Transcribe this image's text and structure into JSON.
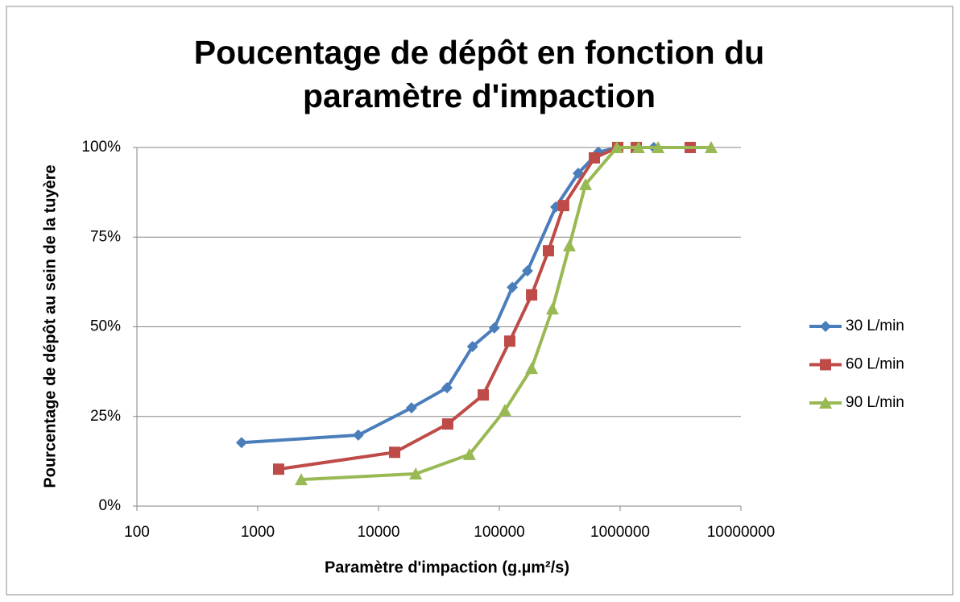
{
  "chart_data": {
    "type": "scatter",
    "title": "Poucentage de dépôt en fonction du paramètre d'impaction",
    "x_label": "Paramètre d'impaction (g.µm²/s)",
    "y_label": "Pourcentage de dépôt au sein de la tuyère",
    "xscale": "log",
    "xlim": [
      100,
      10000000
    ],
    "xticks": [
      100,
      1000,
      10000,
      100000,
      1000000,
      10000000
    ],
    "ylim": [
      0,
      100
    ],
    "yticks": [
      {
        "value": 0,
        "label": "0%"
      },
      {
        "value": 25,
        "label": "25%"
      },
      {
        "value": 50,
        "label": "50%"
      },
      {
        "value": 75,
        "label": "75%"
      },
      {
        "value": 100,
        "label": "100%"
      }
    ],
    "grid": true,
    "legend": "right",
    "series": [
      {
        "name": "30 L/min",
        "color": "#4a7ebb",
        "marker": "diamond",
        "x": [
          735,
          6800,
          18750,
          36900,
          60000,
          91000,
          128000,
          171000,
          293000,
          450000,
          661000,
          955000,
          1900000
        ],
        "values": [
          17.7,
          19.8,
          27.4,
          33,
          44.5,
          49.7,
          61,
          65.6,
          83.4,
          92.8,
          98.7,
          100,
          100
        ]
      },
      {
        "name": "60 L/min",
        "color": "#be4b48",
        "marker": "square",
        "x": [
          1490,
          13600,
          37400,
          73600,
          122000,
          185000,
          255000,
          341000,
          612000,
          955000,
          1360000,
          3800000
        ],
        "values": [
          10.3,
          15,
          22.9,
          31,
          46,
          58.9,
          71.2,
          83.8,
          97.1,
          100,
          100,
          100
        ]
      },
      {
        "name": "90 L/min",
        "color": "#98b954",
        "marker": "triangle",
        "x": [
          2290,
          20300,
          56600,
          111000,
          185000,
          275000,
          380000,
          517000,
          940000,
          1420000,
          2060000,
          5670000
        ],
        "values": [
          7.4,
          9,
          14.4,
          26.7,
          38.4,
          55,
          72.6,
          89.7,
          100,
          100,
          100,
          100
        ]
      }
    ]
  }
}
